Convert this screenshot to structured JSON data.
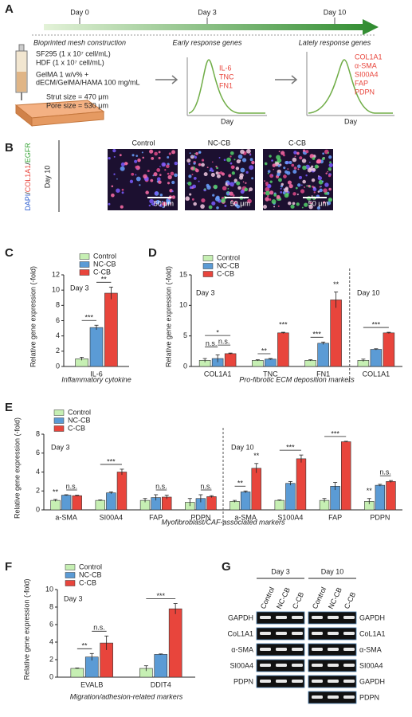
{
  "figure": {
    "panel_labels": [
      "A",
      "B",
      "C",
      "D",
      "E",
      "F",
      "G"
    ],
    "timeline": {
      "days": [
        "Day 0",
        "Day 3",
        "Day 10"
      ],
      "stages": [
        "Bioprinted mesh construction",
        "Early response genes",
        "Lately response genes"
      ]
    },
    "materials": [
      "SF295 (1 x 10⁷ cell/mL)",
      "HDF (1 x 10⁷ cell/mL)",
      "GelMA 1 w/v% +",
      "dECM/GelMA/HAMA 100 mg/mL",
      "Strut size = 470 μm",
      "Pore size = 530 μm"
    ],
    "early_genes": [
      "IL-6",
      "TNC",
      "FN1"
    ],
    "late_genes": [
      "COL1A1",
      "α-SMA",
      "SI00A4",
      "FAP",
      "PDPN"
    ],
    "curve_axis_labels": [
      "Day",
      "Day"
    ],
    "imaging": {
      "stain_parts": [
        "DAPI",
        "/",
        "COL1A1",
        "/",
        "EGFR"
      ],
      "timepoint": "Day 10",
      "columns": [
        "Control",
        "NC-CB",
        "C-CB"
      ],
      "scale_bars": [
        "50 μm",
        "50 μm",
        "50 μm"
      ]
    },
    "gel": {
      "days": [
        "Day 3",
        "Day 10"
      ],
      "lanes": [
        "Control",
        "NC-CB",
        "C-CB",
        "Control",
        "NC-CB",
        "C-CB"
      ],
      "left_rows": [
        "GAPDH",
        "CoL1A1",
        "α-SMA",
        "SI00A4",
        "PDPN"
      ],
      "right_rows": [
        "GAPDH",
        "CoL1A1",
        "α-SMA",
        "SI00A4",
        "GAPDH",
        "PDPN"
      ]
    }
  },
  "chart_data": [
    {
      "type": "bar",
      "ylabel": "Relative gene expression (-fold)",
      "xlabel": "Inflammatory cytokine",
      "notes": [
        "Day 3"
      ],
      "categories": [
        "IL-6"
      ],
      "ylim": [
        0,
        12
      ],
      "yticks": [
        0,
        2,
        4,
        6,
        8,
        10,
        12
      ],
      "series": [
        {
          "name": "Control",
          "color": "#c6efb3",
          "values": [
            1.0
          ],
          "errors": [
            0.2
          ]
        },
        {
          "name": "NC-CB",
          "color": "#5b9bd5",
          "values": [
            5.1
          ],
          "errors": [
            0.3
          ]
        },
        {
          "name": "C-CB",
          "color": "#e8453c",
          "values": [
            9.6
          ],
          "errors": [
            0.8
          ]
        }
      ],
      "significance": [
        "***",
        "**"
      ]
    },
    {
      "type": "bar",
      "ylabel": "Relative gene expression (-fold)",
      "xlabel": "Pro-fibrotic ECM deposition markers",
      "notes": [
        "Day 3",
        "Day 10"
      ],
      "categories": [
        "COL1A1",
        "TNC",
        "FN1",
        "COL1A1"
      ],
      "ylim": [
        0,
        15
      ],
      "yticks": [
        0,
        5,
        10,
        15
      ],
      "series": [
        {
          "name": "Control",
          "color": "#c6efb3",
          "values": [
            1.0,
            1.0,
            1.0,
            1.0
          ],
          "errors": [
            0.3,
            0.1,
            0.1,
            0.2
          ]
        },
        {
          "name": "NC-CB",
          "color": "#5b9bd5",
          "values": [
            1.3,
            1.2,
            3.8,
            2.8
          ],
          "errors": [
            0.6,
            0.1,
            0.2,
            0.1
          ]
        },
        {
          "name": "C-CB",
          "color": "#e8453c",
          "values": [
            2.1,
            5.5,
            10.9,
            5.5
          ],
          "errors": [
            0.1,
            0.1,
            1.3,
            0.1
          ]
        }
      ],
      "significance": [
        "*",
        "n.s.",
        "n.s.",
        "**",
        "***",
        "***",
        "**",
        "***"
      ]
    },
    {
      "type": "bar",
      "ylabel": "Relative gene expression (-fold)",
      "xlabel": "Myofibroblast/CAF-associated markers",
      "notes": [
        "Day 3",
        "Day 10"
      ],
      "categories": [
        "a-SMA",
        "SI00A4",
        "FAP",
        "PDPN",
        "a-SMA",
        "S100A4",
        "FAP",
        "PDPN"
      ],
      "ylim": [
        0,
        8
      ],
      "yticks": [
        0,
        2,
        4,
        6,
        8
      ],
      "series": [
        {
          "name": "Control",
          "color": "#c6efb3",
          "values": [
            1.0,
            1.0,
            1.0,
            0.8,
            0.9,
            1.0,
            1.0,
            0.9
          ],
          "errors": [
            0.1,
            0.05,
            0.2,
            0.4,
            0.1,
            0.05,
            0.2,
            0.3
          ]
        },
        {
          "name": "NC-CB",
          "color": "#5b9bd5",
          "values": [
            1.55,
            1.8,
            1.3,
            1.2,
            1.9,
            2.8,
            2.5,
            2.6
          ],
          "errors": [
            0.05,
            0.1,
            0.3,
            0.4,
            0.1,
            0.2,
            0.4,
            0.1
          ]
        },
        {
          "name": "C-CB",
          "color": "#e8453c",
          "values": [
            1.5,
            4.0,
            1.35,
            1.4,
            4.4,
            5.4,
            7.2,
            3.0
          ],
          "errors": [
            0.05,
            0.3,
            0.2,
            0.1,
            0.5,
            0.4,
            0.05,
            0.1
          ]
        }
      ],
      "significance": [
        "**",
        "n.s.",
        "***",
        "n.s.",
        "n.s.",
        "**",
        "**",
        "***",
        "***",
        "**",
        "n.s."
      ]
    },
    {
      "type": "bar",
      "ylabel": "Relative gene expression (-fold)",
      "xlabel": "Migration/adhesion-related markers",
      "notes": [
        "Day 3"
      ],
      "categories": [
        "EVALB",
        "DDIT4"
      ],
      "ylim": [
        0,
        10
      ],
      "yticks": [
        0,
        2,
        4,
        6,
        8,
        10
      ],
      "series": [
        {
          "name": "Control",
          "color": "#c6efb3",
          "values": [
            1.0,
            1.0
          ],
          "errors": [
            0.05,
            0.3
          ]
        },
        {
          "name": "NC-CB",
          "color": "#5b9bd5",
          "values": [
            2.3,
            2.6
          ],
          "errors": [
            0.4,
            0.05
          ]
        },
        {
          "name": "C-CB",
          "color": "#e8453c",
          "values": [
            3.9,
            7.8
          ],
          "errors": [
            0.8,
            0.6
          ]
        }
      ],
      "significance": [
        "**",
        "n.s.",
        "***"
      ]
    }
  ]
}
